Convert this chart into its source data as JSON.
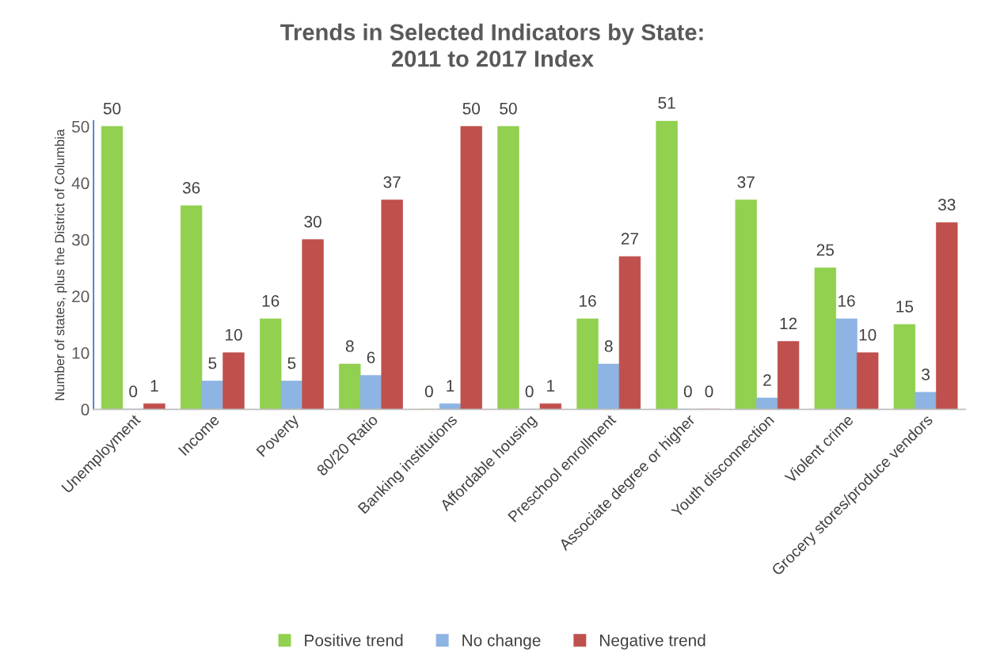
{
  "chart_data": {
    "type": "bar",
    "title": "Trends in Selected Indicators by State:\n2011 to 2017 Index",
    "ylabel": "Number of states, plus the District of Columbia",
    "categories": [
      "Unemployment",
      "Income",
      "Poverty",
      "80/20 Ratio",
      "Banking institutions",
      "Affordable housing",
      "Preschool enrollment",
      "Associate degree or higher",
      "Youth disconnection",
      "Violent crime",
      "Grocery stores/produce vendors"
    ],
    "series": [
      {
        "name": "Positive trend",
        "color": "#92d050",
        "values": [
          50,
          36,
          16,
          8,
          0,
          50,
          16,
          51,
          37,
          25,
          15
        ]
      },
      {
        "name": "No change",
        "color": "#8db4e2",
        "values": [
          0,
          5,
          5,
          6,
          1,
          0,
          8,
          0,
          2,
          16,
          3
        ]
      },
      {
        "name": "Negative trend",
        "color": "#c0504d",
        "values": [
          1,
          10,
          30,
          37,
          50,
          1,
          27,
          0,
          12,
          10,
          33
        ]
      }
    ],
    "ylim": [
      0,
      51
    ],
    "yticks": [
      0,
      10,
      20,
      30,
      40,
      50
    ],
    "grid": false,
    "legend": "bottom",
    "data_labels": true
  }
}
